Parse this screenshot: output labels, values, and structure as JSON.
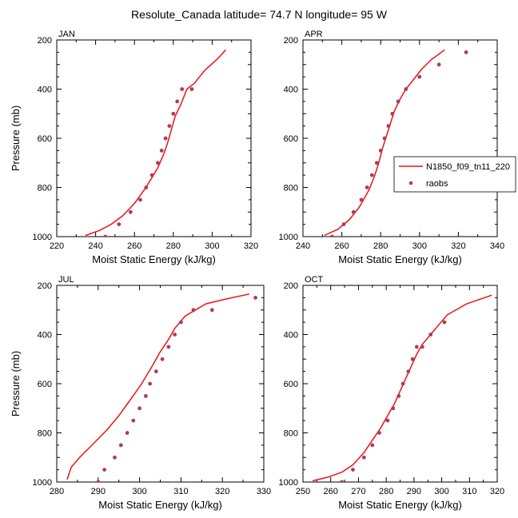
{
  "figure_title": "Resolute_Canada  latitude= 74.7 N longitude= 95 W",
  "colors": {
    "model_line": "#ee1111",
    "obs_marker": "#b03a5b",
    "axis": "#000000"
  },
  "legend": {
    "model_label": "N1850_f09_tn11_220",
    "obs_label": "raobs",
    "model_icon": "line-icon",
    "obs_icon": "dot-icon"
  },
  "chart_data": [
    {
      "type": "line",
      "panel": "JAN",
      "xlabel": "Moist Static Energy (kJ/kg)",
      "ylabel": "Pressure (mb)",
      "xlim": [
        220,
        320
      ],
      "ylim": [
        1000,
        200
      ],
      "xticks": [
        220,
        240,
        260,
        280,
        300,
        320
      ],
      "yticks": [
        200,
        400,
        600,
        800,
        1000
      ],
      "series": [
        {
          "name": "N1850_f09_tn11_220",
          "kind": "line",
          "x": [
            234.8,
            242,
            248,
            254,
            260,
            265,
            269,
            272,
            275,
            277,
            279,
            281,
            284,
            287,
            291,
            296,
            303,
            307
          ],
          "y": [
            995,
            975,
            950,
            915,
            865,
            810,
            760,
            720,
            665,
            620,
            565,
            510,
            460,
            400,
            375,
            325,
            275,
            240
          ]
        },
        {
          "name": "raobs",
          "kind": "scatter",
          "x": [
            245,
            252,
            258,
            263,
            266,
            269,
            272,
            274,
            276,
            278,
            280,
            282,
            284.5,
            289.5
          ],
          "y": [
            1000,
            950,
            900,
            850,
            800,
            750,
            700,
            650,
            600,
            550,
            500,
            450,
            400,
            400
          ]
        }
      ]
    },
    {
      "type": "line",
      "panel": "APR",
      "xlabel": "Moist Static Energy (kJ/kg)",
      "ylabel": "Pressure (mb)",
      "xlim": [
        240,
        340
      ],
      "ylim": [
        1000,
        200
      ],
      "xticks": [
        240,
        260,
        280,
        300,
        320,
        340
      ],
      "yticks": [
        200,
        400,
        600,
        800,
        1000
      ],
      "series": [
        {
          "name": "N1850_f09_tn11_220",
          "kind": "line",
          "x": [
            251,
            258,
            264,
            269,
            274,
            277,
            279,
            281,
            283,
            285,
            287,
            290,
            293,
            297,
            301,
            306,
            313
          ],
          "y": [
            995,
            970,
            930,
            880,
            810,
            750,
            700,
            640,
            590,
            540,
            490,
            440,
            400,
            360,
            320,
            280,
            240
          ]
        },
        {
          "name": "raobs",
          "kind": "scatter",
          "x": [
            255,
            261,
            266,
            270,
            273,
            275.5,
            278,
            280,
            282,
            284,
            286,
            289,
            293,
            300,
            310,
            324
          ],
          "y": [
            1000,
            950,
            900,
            850,
            800,
            750,
            700,
            650,
            600,
            550,
            500,
            450,
            400,
            350,
            300,
            250
          ]
        }
      ]
    },
    {
      "type": "line",
      "panel": "JUL",
      "xlabel": "Moist Static Energy (kJ/kg)",
      "ylabel": "Pressure (mb)",
      "xlim": [
        280,
        330
      ],
      "ylim": [
        1000,
        200
      ],
      "xticks": [
        280,
        290,
        300,
        310,
        320,
        330
      ],
      "yticks": [
        200,
        400,
        600,
        800,
        1000
      ],
      "series": [
        {
          "name": "N1850_f09_tn11_220",
          "kind": "line",
          "x": [
            282.5,
            283.5,
            285.5,
            288.5,
            292,
            295,
            298,
            300.5,
            303,
            305,
            307,
            308.5,
            311,
            316,
            321,
            326.5
          ],
          "y": [
            990,
            940,
            900,
            850,
            790,
            730,
            660,
            600,
            530,
            470,
            420,
            375,
            325,
            275,
            255,
            235
          ]
        },
        {
          "name": "raobs",
          "kind": "scatter",
          "x": [
            290,
            291.5,
            294,
            295.5,
            297,
            298.5,
            300,
            301.5,
            302.5,
            304,
            305.5,
            307,
            308.5,
            310,
            313,
            317.5,
            328
          ],
          "y": [
            1000,
            950,
            900,
            850,
            800,
            750,
            700,
            650,
            600,
            550,
            500,
            450,
            400,
            350,
            300,
            300,
            250
          ]
        }
      ]
    },
    {
      "type": "line",
      "panel": "OCT",
      "xlabel": "Moist Static Energy (kJ/kg)",
      "ylabel": "Pressure (mb)",
      "xlim": [
        250,
        320
      ],
      "ylim": [
        1000,
        200
      ],
      "xticks": [
        250,
        260,
        270,
        280,
        290,
        300,
        310,
        320
      ],
      "yticks": [
        200,
        400,
        600,
        800,
        1000
      ],
      "series": [
        {
          "name": "N1850_f09_tn11_220",
          "kind": "line",
          "x": [
            253.5,
            259,
            264,
            268,
            272,
            275,
            278,
            280.5,
            283,
            285,
            287,
            289,
            291,
            293,
            296,
            299,
            302,
            309,
            318
          ],
          "y": [
            995,
            980,
            960,
            930,
            880,
            830,
            780,
            730,
            680,
            630,
            580,
            530,
            480,
            440,
            400,
            360,
            320,
            275,
            240
          ]
        },
        {
          "name": "raobs",
          "kind": "scatter",
          "x": [
            264,
            268,
            272,
            275,
            277.5,
            280.5,
            282.5,
            284.5,
            286,
            288,
            289.5,
            291,
            293,
            296,
            301
          ],
          "y": [
            1000,
            950,
            900,
            850,
            800,
            750,
            700,
            650,
            600,
            550,
            500,
            450,
            450,
            400,
            350
          ]
        }
      ]
    }
  ]
}
